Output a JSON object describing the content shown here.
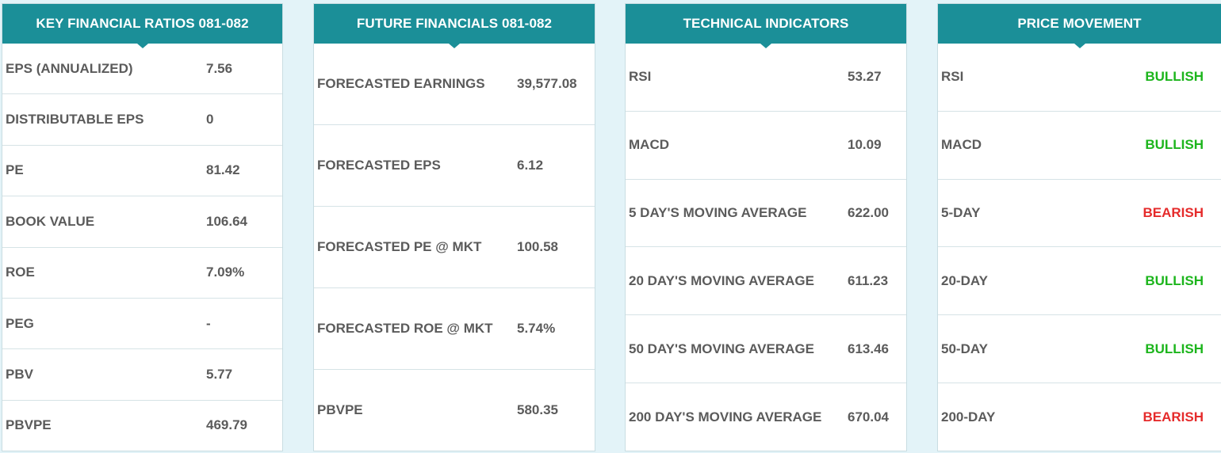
{
  "key_ratios": {
    "title": "KEY FINANCIAL RATIOS 081-082",
    "rows": [
      {
        "label": "EPS (ANNUALIZED)",
        "value": "7.56"
      },
      {
        "label": "DISTRIBUTABLE EPS",
        "value": "0"
      },
      {
        "label": "PE",
        "value": "81.42"
      },
      {
        "label": "BOOK VALUE",
        "value": "106.64"
      },
      {
        "label": "ROE",
        "value": "7.09%"
      },
      {
        "label": "PEG",
        "value": "-"
      },
      {
        "label": "PBV",
        "value": "5.77"
      },
      {
        "label": "PBVPE",
        "value": "469.79"
      }
    ]
  },
  "future_financials": {
    "title": "FUTURE FINANCIALS 081-082",
    "rows": [
      {
        "label": "FORECASTED EARNINGS",
        "value": "39,577.08"
      },
      {
        "label": "FORECASTED EPS",
        "value": "6.12"
      },
      {
        "label": "FORECASTED PE @ MKT",
        "value": "100.58"
      },
      {
        "label": "FORECASTED ROE @ MKT",
        "value": "5.74%"
      },
      {
        "label": "PBVPE",
        "value": "580.35"
      }
    ]
  },
  "technical": {
    "title": "TECHNICAL INDICATORS",
    "rows": [
      {
        "label": "RSI",
        "value": "53.27"
      },
      {
        "label": "MACD",
        "value": "10.09"
      },
      {
        "label": "5 DAY'S MOVING AVERAGE",
        "value": "622.00"
      },
      {
        "label": "20 DAY'S MOVING AVERAGE",
        "value": "611.23"
      },
      {
        "label": "50 DAY'S MOVING AVERAGE",
        "value": "613.46"
      },
      {
        "label": "200 DAY'S MOVING AVERAGE",
        "value": "670.04"
      }
    ]
  },
  "price_movement": {
    "title": "PRICE MOVEMENT",
    "rows": [
      {
        "label": "RSI",
        "value": "BULLISH"
      },
      {
        "label": "MACD",
        "value": "BULLISH"
      },
      {
        "label": "5-DAY",
        "value": "BEARISH"
      },
      {
        "label": "20-DAY",
        "value": "BULLISH"
      },
      {
        "label": "50-DAY",
        "value": "BULLISH"
      },
      {
        "label": "200-DAY",
        "value": "BEARISH"
      }
    ]
  },
  "colors": {
    "header": "#1b8f98",
    "bullish": "#1cb51c",
    "bearish": "#e52b2b",
    "background": "#e3f3f8"
  }
}
